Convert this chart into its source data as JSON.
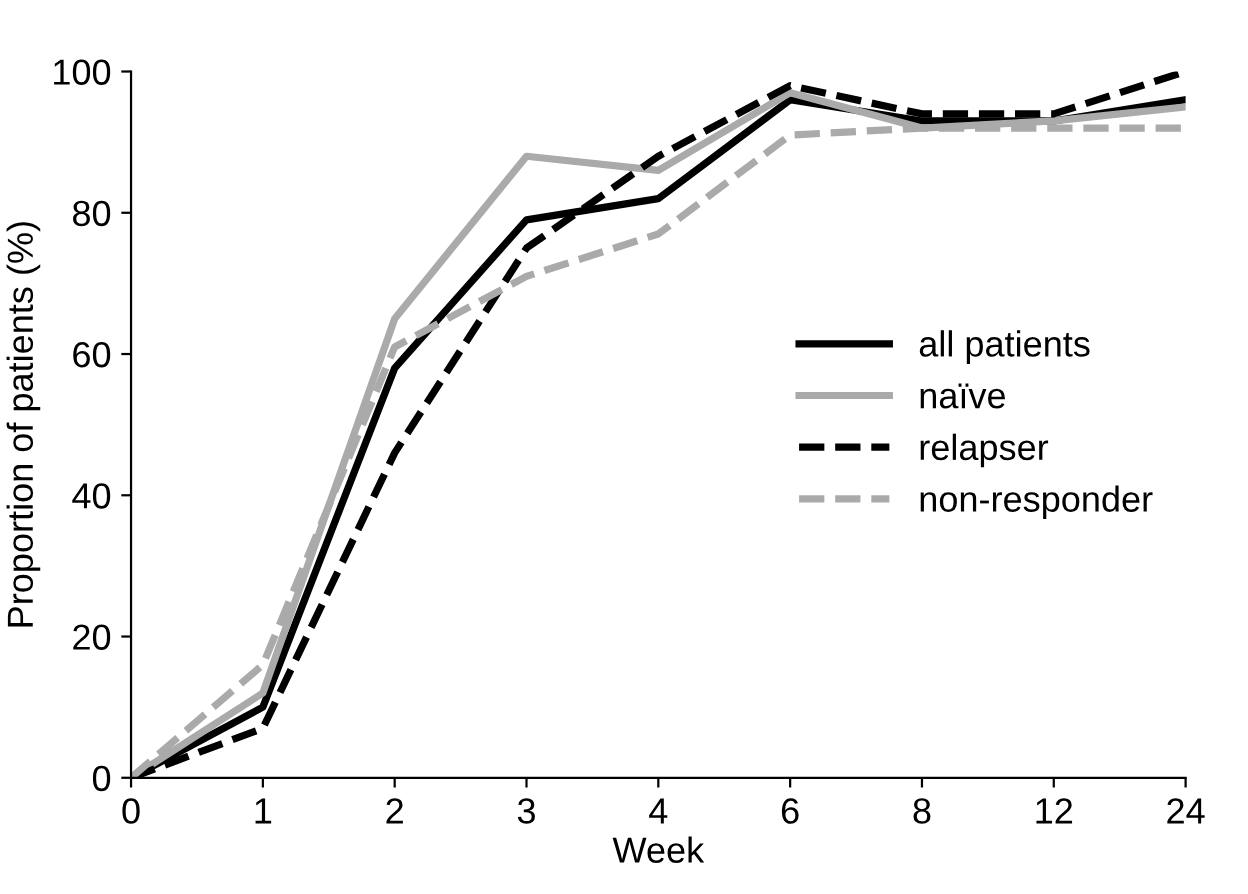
{
  "chart_data": {
    "type": "line",
    "xlabel": "Week",
    "ylabel": "Proportion of patients (%)",
    "categories": [
      "0",
      "1",
      "2",
      "3",
      "4",
      "6",
      "8",
      "12",
      "24"
    ],
    "ylim": [
      0,
      100
    ],
    "yticks": [
      0,
      20,
      40,
      60,
      80,
      100
    ],
    "grid": false,
    "legend": "center right",
    "marker": "none",
    "series": [
      {
        "name": "all patients",
        "color": "#000000",
        "line_style": "solid",
        "values": [
          0,
          10,
          58,
          79,
          82,
          96,
          93,
          93,
          96
        ]
      },
      {
        "name": "naïve",
        "color": "#aaaaaa",
        "line_style": "solid",
        "values": [
          0,
          12,
          65,
          88,
          86,
          97,
          92,
          93,
          95
        ]
      },
      {
        "name": "relapser",
        "color": "#000000",
        "line_style": "dashed",
        "values": [
          0,
          7,
          46,
          75,
          88,
          98,
          94,
          94,
          100
        ]
      },
      {
        "name": "non-responder",
        "color": "#aaaaaa",
        "line_style": "dashed",
        "values": [
          0,
          16,
          61,
          71,
          77,
          91,
          92,
          92,
          92
        ]
      }
    ]
  }
}
